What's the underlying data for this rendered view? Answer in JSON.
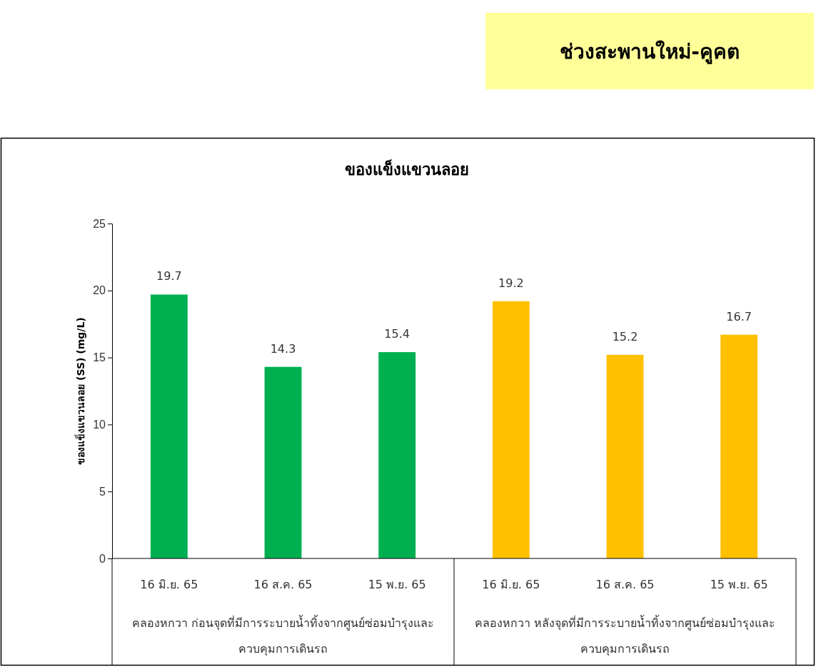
{
  "chart_data": {
    "type": "bar",
    "title": "ของแข็งแขวนลอย",
    "ylabel": "ของแข็งแขวนลอย (SS) (mg/L)",
    "categories": [
      "16 มิ.ย. 65",
      "16 ส.ค. 65",
      "15 พ.ย. 65",
      "16 มิ.ย. 65",
      "16 ส.ค. 65",
      "15 พ.ย. 65"
    ],
    "values": [
      19.7,
      14.3,
      15.4,
      19.2,
      15.2,
      16.7
    ],
    "colors": [
      "#00b050",
      "#00b050",
      "#00b050",
      "#ffc000",
      "#ffc000",
      "#ffc000"
    ],
    "ylim": [
      0,
      25
    ],
    "yticks": [
      0,
      5,
      10,
      15,
      20,
      25
    ],
    "data_labels": true,
    "grid": false,
    "annotations": [
      "ช่วงสะพานใหม่-คูคต",
      "คลองหกวา ก่อนจุดที่มีการระบายน้ำทิ้งจากศูนย์ซ่อมบำรุงและควบคุมการเดินรถ",
      "คลองหกวา หลังจุดที่มีการระบายน้ำทิ้งจากศูนย์ซ่อมบำรุงและควบคุมการเดินรถ"
    ]
  }
}
